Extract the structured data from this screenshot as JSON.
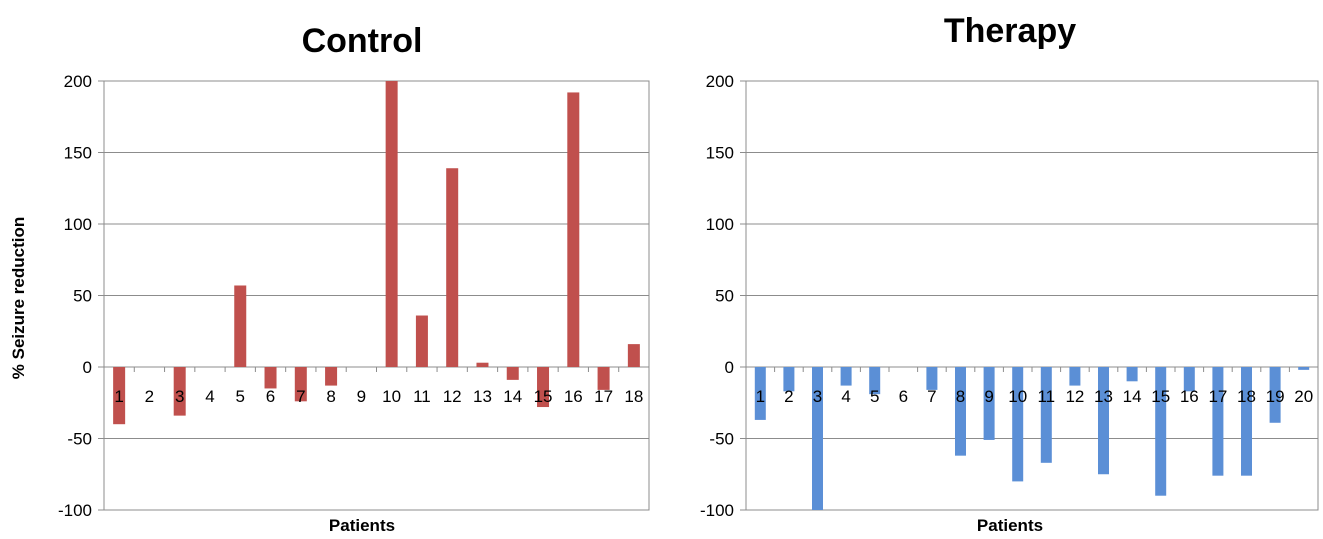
{
  "chart_data": [
    {
      "type": "bar",
      "title": "Control",
      "xlabel": "Patients",
      "ylabel": "% Seizure reduction",
      "ylim": [
        -100,
        200
      ],
      "yticks": [
        -100,
        -50,
        0,
        50,
        100,
        150,
        200
      ],
      "grid": true,
      "color": "#c0504d",
      "categories": [
        "1",
        "2",
        "3",
        "4",
        "5",
        "6",
        "7",
        "8",
        "9",
        "10",
        "11",
        "12",
        "13",
        "14",
        "15",
        "16",
        "17",
        "18"
      ],
      "values": [
        -40,
        0,
        -34,
        0,
        57,
        -15,
        -24,
        -13,
        0,
        200,
        36,
        139,
        3,
        -9,
        -28,
        192,
        -16,
        16
      ]
    },
    {
      "type": "bar",
      "title": "Therapy",
      "xlabel": "Patients",
      "ylabel": "",
      "ylim": [
        -100,
        200
      ],
      "yticks": [
        -100,
        -50,
        0,
        50,
        100,
        150,
        200
      ],
      "grid": true,
      "color": "#5b8fd6",
      "categories": [
        "1",
        "2",
        "3",
        "4",
        "5",
        "6",
        "7",
        "8",
        "9",
        "10",
        "11",
        "12",
        "13",
        "14",
        "15",
        "16",
        "17",
        "18",
        "19",
        "20"
      ],
      "values": [
        -37,
        -17,
        -100,
        -13,
        -19,
        0,
        -16,
        -62,
        -51,
        -80,
        -67,
        -13,
        -75,
        -10,
        -90,
        -17,
        -76,
        -76,
        -39,
        -2
      ]
    }
  ]
}
